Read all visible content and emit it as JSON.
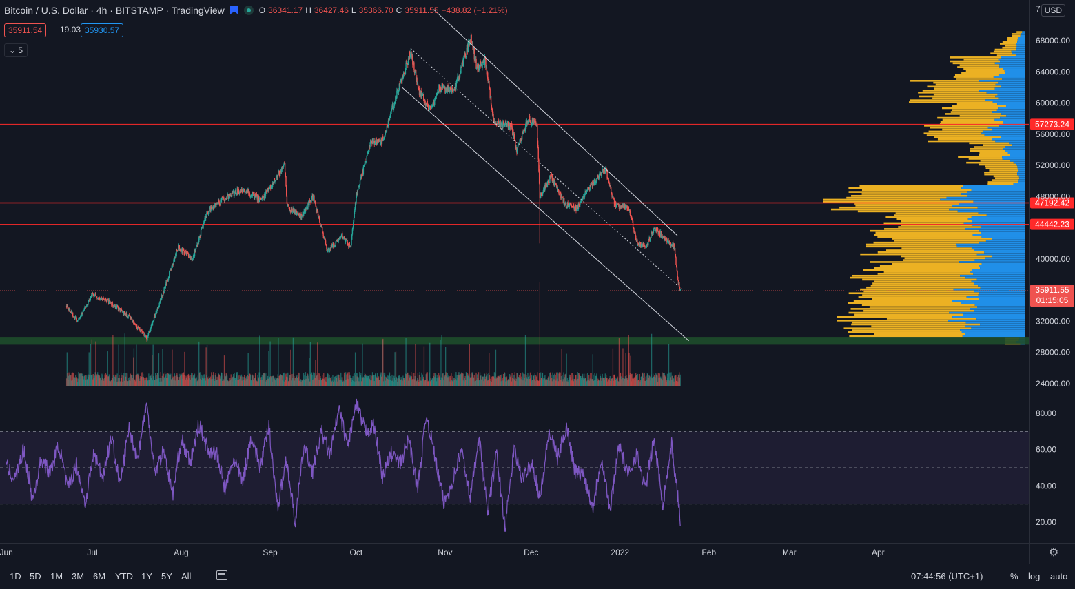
{
  "header": {
    "symbol": "Bitcoin / U.S. Dollar · 4h · BITSTAMP · TradingView",
    "open_label": "O",
    "open": "36341.17",
    "high_label": "H",
    "high": "36427.46",
    "low_label": "L",
    "low": "35366.70",
    "close_label": "C",
    "close": "35911.55",
    "change": "−438.82 (−1.21%)",
    "bid": "35911.54",
    "spread": "19.03",
    "ask": "35930.57",
    "indicator_count": "5",
    "currency": "USD"
  },
  "colors": {
    "background": "#131722",
    "up": "#26a69a",
    "down": "#ef5350",
    "resistance": "#ff2a2a",
    "channel": "#d1d4dc",
    "volume_up": "#f7b924",
    "volume_value": "#2196f3",
    "rsi": "#7e57c2",
    "support_band": "#1e4d2b"
  },
  "chart_data": [
    {
      "type": "candlestick",
      "title": "",
      "x_axis_labels": [
        "Jun",
        "Jul",
        "Aug",
        "Sep",
        "Oct",
        "Nov",
        "Dec",
        "2022",
        "Feb",
        "Mar",
        "Apr"
      ],
      "y_axis_labels": [
        "68000.00",
        "64000.00",
        "60000.00",
        "56000.00",
        "52000.00",
        "48000.00",
        "40000.00",
        "32000.00",
        "28000.00",
        "24000.00"
      ],
      "y_top_label": "7",
      "ylim": [
        24000,
        72000
      ],
      "price_path": [
        [
          "2021-06-22",
          34000
        ],
        [
          "2021-06-26",
          32000
        ],
        [
          "2021-07-01",
          35500
        ],
        [
          "2021-07-07",
          34500
        ],
        [
          "2021-07-14",
          32500
        ],
        [
          "2021-07-20",
          29800
        ],
        [
          "2021-07-25",
          35000
        ],
        [
          "2021-07-31",
          41500
        ],
        [
          "2021-08-05",
          40000
        ],
        [
          "2021-08-10",
          46000
        ],
        [
          "2021-08-15",
          47500
        ],
        [
          "2021-08-22",
          49000
        ],
        [
          "2021-08-29",
          47500
        ],
        [
          "2021-09-06",
          52000
        ],
        [
          "2021-09-07",
          46500
        ],
        [
          "2021-09-12",
          45500
        ],
        [
          "2021-09-16",
          48000
        ],
        [
          "2021-09-21",
          41000
        ],
        [
          "2021-09-26",
          43000
        ],
        [
          "2021-09-29",
          41500
        ],
        [
          "2021-10-01",
          48000
        ],
        [
          "2021-10-06",
          55000
        ],
        [
          "2021-10-10",
          55000
        ],
        [
          "2021-10-15",
          61000
        ],
        [
          "2021-10-20",
          66500
        ],
        [
          "2021-10-23",
          61500
        ],
        [
          "2021-10-27",
          59000
        ],
        [
          "2021-10-30",
          62000
        ],
        [
          "2021-11-04",
          61500
        ],
        [
          "2021-11-10",
          68500
        ],
        [
          "2021-11-12",
          64500
        ],
        [
          "2021-11-15",
          65500
        ],
        [
          "2021-11-18",
          57500
        ],
        [
          "2021-11-24",
          57000
        ],
        [
          "2021-11-26",
          54000
        ],
        [
          "2021-11-30",
          58000
        ],
        [
          "2021-12-03",
          57000
        ],
        [
          "2021-12-04",
          48000
        ],
        [
          "2021-12-08",
          50500
        ],
        [
          "2021-12-13",
          47000
        ],
        [
          "2021-12-17",
          46500
        ],
        [
          "2021-12-21",
          49000
        ],
        [
          "2021-12-27",
          51500
        ],
        [
          "2021-12-30",
          47000
        ],
        [
          "2022-01-04",
          46500
        ],
        [
          "2022-01-07",
          42000
        ],
        [
          "2022-01-10",
          41500
        ],
        [
          "2022-01-13",
          44000
        ],
        [
          "2022-01-17",
          42500
        ],
        [
          "2022-01-20",
          41500
        ],
        [
          "2022-01-21",
          37500
        ],
        [
          "2022-01-22",
          35911.55
        ]
      ],
      "price_lines": [
        {
          "value": 57273.24,
          "label": "57273.24"
        },
        {
          "value": 47192.42,
          "label": "47192.42"
        },
        {
          "value": 44442.23,
          "label": "44442.23"
        }
      ],
      "last_price": {
        "value": 35911.55,
        "label": "35911.55",
        "countdown": "01:15:05"
      },
      "support_zone": [
        29000,
        30000
      ],
      "channel": {
        "upper": [
          [
            "2021-10-28",
            72000
          ],
          [
            "2022-01-21",
            43000
          ]
        ],
        "middle": [
          [
            "2021-10-20",
            67000
          ],
          [
            "2022-01-23",
            36000
          ]
        ],
        "lower": [
          [
            "2021-10-17",
            62000
          ],
          [
            "2022-01-25",
            29500
          ]
        ]
      }
    },
    {
      "type": "line",
      "title": "",
      "series": [
        {
          "values": [
            50,
            44,
            60,
            32,
            55,
            47,
            63,
            38,
            52,
            30,
            58,
            45,
            67,
            40,
            72,
            55,
            85,
            48,
            60,
            35,
            66,
            52,
            74,
            60,
            58,
            38,
            55,
            42,
            68,
            50,
            73,
            28,
            55,
            20,
            62,
            48,
            70,
            57,
            82,
            62,
            85,
            70,
            73,
            45,
            58,
            52,
            66,
            38,
            80,
            55,
            30,
            43,
            60,
            33,
            68,
            25,
            58,
            17,
            60,
            43,
            54,
            33,
            70,
            55,
            73,
            48,
            46,
            28,
            56,
            26,
            64,
            45,
            58,
            38,
            66,
            30,
            63,
            22
          ]
        }
      ],
      "y_axis_labels": [
        "80.00",
        "60.00",
        "40.00",
        "20.00"
      ],
      "ylim": [
        10,
        95
      ],
      "bands": [
        70,
        50,
        30
      ]
    }
  ],
  "toolbar": {
    "ranges": [
      "1D",
      "5D",
      "1M",
      "3M",
      "6M",
      "YTD",
      "1Y",
      "5Y",
      "All"
    ],
    "clock": "07:44:56 (UTC+1)",
    "percent": "%",
    "log": "log",
    "auto": "auto"
  }
}
